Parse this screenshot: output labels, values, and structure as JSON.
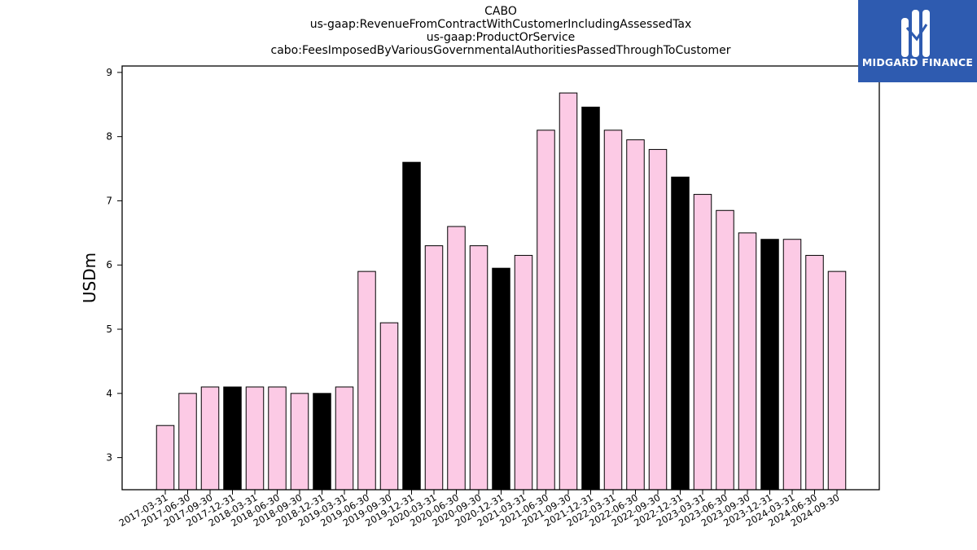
{
  "titles": {
    "line1": "CABO",
    "line2": "us-gaap:RevenueFromContractWithCustomerIncludingAssessedTax",
    "line3": "us-gaap:ProductOrService",
    "line4": "cabo:FeesImposedByVariousGovernmentalAuthoritiesPassedThroughToCustomer"
  },
  "logo": {
    "text": "MIDGARD FINANCE",
    "icon": "midgard-logo-icon",
    "background": "#2e5bb0"
  },
  "chart_data": {
    "type": "bar",
    "title": "CABO",
    "ylabel": "USDm",
    "xlabel": "",
    "ylim": [
      2.5,
      9.1
    ],
    "yticks": [
      3,
      4,
      5,
      6,
      7,
      8,
      9
    ],
    "grid": false,
    "colors": {
      "quarter": "#fccae5",
      "year_end": "#000000",
      "edge": "#000000"
    },
    "categories": [
      "2017-03-31",
      "2017-06-30",
      "2017-09-30",
      "2017-12-31",
      "2018-03-31",
      "2018-06-30",
      "2018-09-30",
      "2018-12-31",
      "2019-03-31",
      "2019-06-30",
      "2019-09-30",
      "2019-12-31",
      "2020-03-31",
      "2020-06-30",
      "2020-09-30",
      "2020-12-31",
      "2021-03-31",
      "2021-06-30",
      "2021-09-30",
      "2021-12-31",
      "2022-03-31",
      "2022-06-30",
      "2022-09-30",
      "2022-12-31",
      "2023-03-31",
      "2023-06-30",
      "2023-09-30",
      "2023-12-31",
      "2024-03-31",
      "2024-06-30",
      "2024-09-30"
    ],
    "values": [
      3.5,
      4.0,
      4.1,
      4.1,
      4.1,
      4.1,
      4.0,
      4.0,
      4.1,
      5.9,
      5.1,
      7.6,
      6.3,
      6.6,
      6.3,
      5.95,
      6.15,
      8.1,
      8.68,
      8.46,
      8.1,
      7.95,
      7.8,
      7.37,
      7.1,
      6.85,
      6.5,
      6.4,
      6.4,
      6.15,
      5.9
    ]
  }
}
